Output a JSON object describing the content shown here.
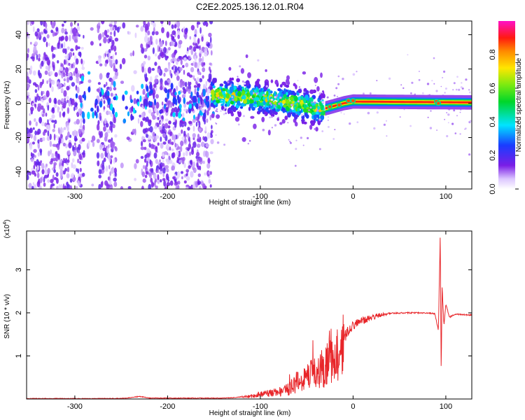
{
  "title": "C2E2.2025.136.12.01.R04",
  "chart_data": [
    {
      "type": "heatmap",
      "xlabel": "Height of straight line (km)",
      "ylabel": "Frequency (Hz)",
      "xlim": [
        -352,
        128
      ],
      "ylim": [
        -50,
        48
      ],
      "xticks": [
        -300,
        -200,
        -100,
        0,
        100
      ],
      "xtick_labels": [
        "-300",
        "-200",
        "-100",
        "0",
        "100"
      ],
      "yticks": [
        -40,
        -20,
        0,
        20,
        40
      ],
      "ytick_labels": [
        "-40",
        "-20",
        "0",
        "20",
        "40"
      ],
      "colorbar": {
        "label": "Normalized spectral amplitude",
        "range": [
          0,
          1
        ],
        "ticks": [
          0,
          0.2,
          0.4,
          0.6,
          0.8
        ],
        "tick_labels": [
          "0.0",
          "0.2",
          "0.4",
          "0.6",
          "0.8"
        ],
        "colormap": "rainbow (violet → blue → cyan → green → yellow → red → magenta)"
      },
      "regions": [
        {
          "name": "noise",
          "x_range": [
            -352,
            -152
          ],
          "y_range": [
            -50,
            48
          ],
          "amplitude": 0.1
        },
        {
          "name": "signal-scatter",
          "x_range": [
            -152,
            -30
          ],
          "freq_trend": [
            [
              -152,
              5
            ],
            [
              -100,
              3
            ],
            [
              -60,
              0
            ],
            [
              -30,
              -5
            ]
          ],
          "amplitude": 0.45
        },
        {
          "name": "carrier",
          "x_range": [
            -30,
            128
          ],
          "freq": [
            [
              -30,
              -3
            ],
            [
              -10,
              0
            ],
            [
              0,
              1
            ],
            [
              128,
              0.5
            ]
          ],
          "amplitude": 0.95
        }
      ]
    },
    {
      "type": "line",
      "xlabel": "Height of straight line (km)",
      "ylabel": "SNR (10 * v/v)",
      "y_multiplier": "(x10^4)",
      "xlim": [
        -352,
        128
      ],
      "ylim": [
        0,
        3.9
      ],
      "xticks": [
        -300,
        -200,
        -100,
        0,
        100
      ],
      "xtick_labels": [
        "-300",
        "-200",
        "-100",
        "0",
        "100"
      ],
      "yticks": [
        1,
        2,
        3
      ],
      "ytick_labels": [
        "1",
        "2",
        "3"
      ],
      "color": "#e8262a",
      "series": [
        {
          "values_xy": [
            [
              -352,
              0.01
            ],
            [
              -300,
              0.01
            ],
            [
              -250,
              0.01
            ],
            [
              -230,
              0.06
            ],
            [
              -220,
              0.02
            ],
            [
              -150,
              0.02
            ],
            [
              -130,
              0.03
            ],
            [
              -110,
              0.07
            ],
            [
              -100,
              0.12
            ],
            [
              -90,
              0.15
            ],
            [
              -80,
              0.18
            ],
            [
              -70,
              0.25
            ],
            [
              -60,
              0.45
            ],
            [
              -50,
              0.55
            ],
            [
              -40,
              0.7
            ],
            [
              -30,
              0.85
            ],
            [
              -25,
              0.95
            ],
            [
              -20,
              1.05
            ],
            [
              -15,
              1.2
            ],
            [
              -10,
              1.4
            ],
            [
              -5,
              1.6
            ],
            [
              0,
              1.72
            ],
            [
              10,
              1.82
            ],
            [
              20,
              1.88
            ],
            [
              30,
              1.95
            ],
            [
              40,
              1.99
            ],
            [
              60,
              2.0
            ],
            [
              80,
              2.0
            ],
            [
              88,
              1.98
            ],
            [
              92,
              1.6
            ],
            [
              94,
              3.85
            ],
            [
              95,
              0.6
            ],
            [
              96,
              2.6
            ],
            [
              98,
              1.7
            ],
            [
              100,
              2.2
            ],
            [
              104,
              1.9
            ],
            [
              110,
              1.97
            ],
            [
              128,
              1.95
            ]
          ]
        }
      ]
    }
  ]
}
